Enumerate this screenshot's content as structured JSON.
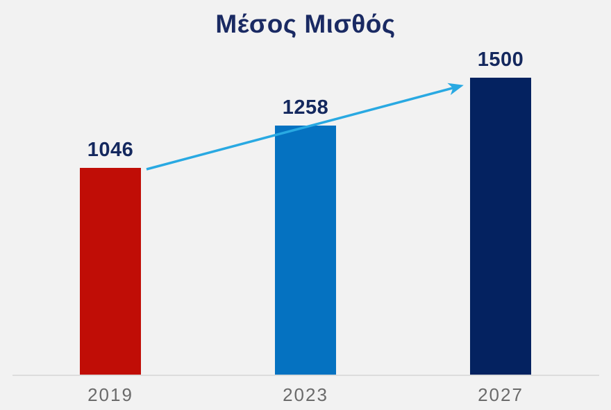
{
  "page": {
    "background_color": "#f2f2f2"
  },
  "chart_data": {
    "type": "bar",
    "title": "Μέσος Μισθός",
    "categories": [
      "2019",
      "2023",
      "2027"
    ],
    "values": [
      1046,
      1258,
      1500
    ],
    "value_labels": [
      "1046",
      "1258",
      "1500"
    ],
    "bar_colors": [
      "#c00d06",
      "#0572c1",
      "#042260"
    ],
    "title_color": "#1a2a63",
    "value_label_color": "#14285e",
    "category_label_color": "#6a6a6a",
    "axis_line_color": "#dcdcdc",
    "ylim": [
      0,
      1500
    ],
    "grid": false,
    "legend": false,
    "annotations": [
      {
        "type": "trend-arrow",
        "color": "#29a9e2",
        "from_category": "2019",
        "to_category": "2027"
      }
    ]
  }
}
